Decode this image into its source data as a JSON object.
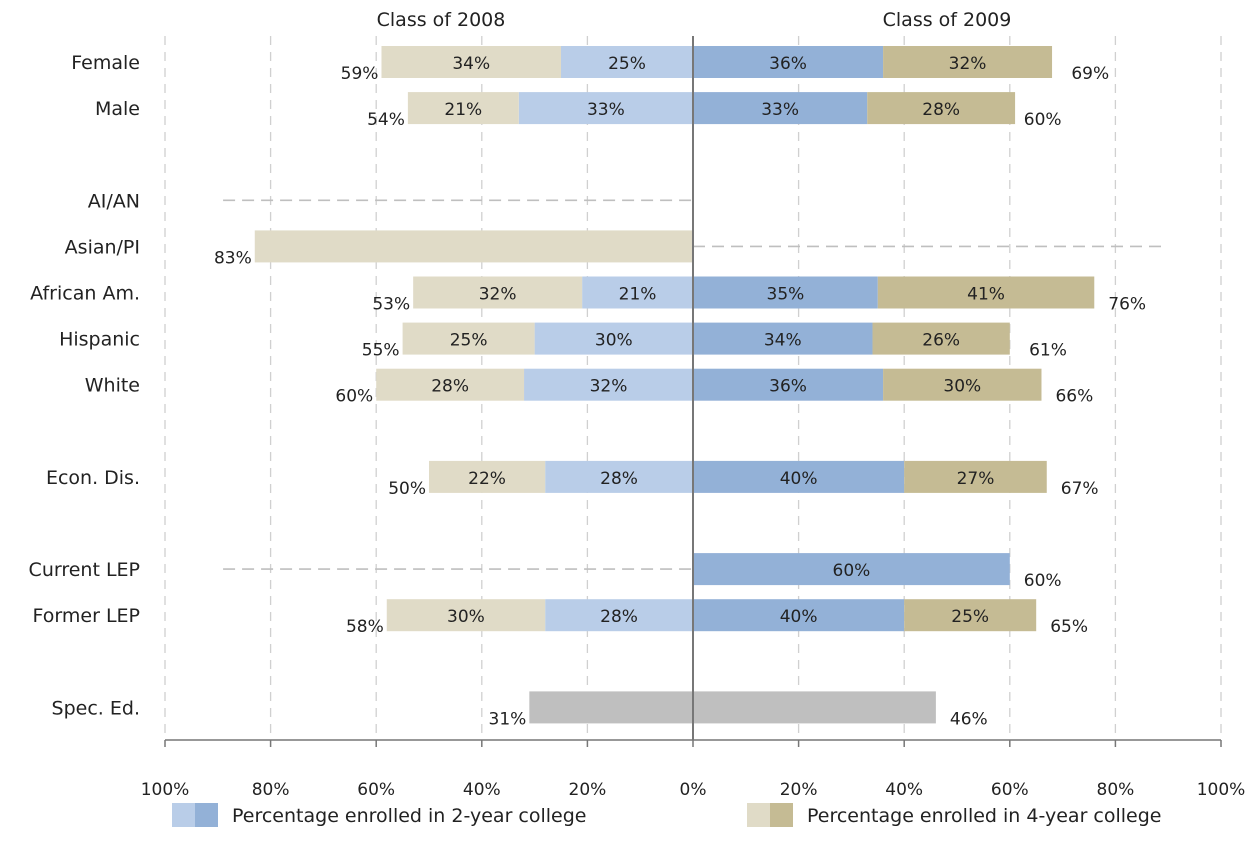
{
  "chart_data": {
    "type": "bar",
    "orientation": "horizontal-diverging",
    "panels": [
      "Class of 2008",
      "Class of 2009"
    ],
    "xlim": [
      -100,
      100
    ],
    "x_ticks": [
      "100%",
      "80%",
      "60%",
      "40%",
      "20%",
      "0%",
      "20%",
      "40%",
      "60%",
      "80%",
      "100%"
    ],
    "grid": "vertical dashed",
    "legend_position": "bottom",
    "legend": [
      {
        "label": "Percentage enrolled in 2-year college",
        "colors": [
          "#b9cde8",
          "#93b1d7"
        ]
      },
      {
        "label": "Percentage enrolled in 4-year college",
        "colors": [
          "#e0dbc7",
          "#c5bb94"
        ]
      }
    ],
    "colors": {
      "two_year_2008": "#b9cde8",
      "two_year_2009": "#93b1d7",
      "four_year_2008": "#e0dbc7",
      "four_year_2009": "#c5bb94",
      "special": "#bfbfbf",
      "no_data_line": "#bfbfbf",
      "axis": "#777777",
      "grid": "#d0d0d0"
    },
    "groups": [
      {
        "category": "Female",
        "c2008": {
          "two_year": 25,
          "four_year": 34,
          "total": 59,
          "two_year_label": "25%",
          "four_year_label": "34%",
          "total_label": "59%"
        },
        "c2009": {
          "two_year": 36,
          "four_year": 32,
          "total": 69,
          "two_year_label": "36%",
          "four_year_label": "32%",
          "total_label": "69%"
        }
      },
      {
        "category": "Male",
        "c2008": {
          "two_year": 33,
          "four_year": 21,
          "total": 54,
          "two_year_label": "33%",
          "four_year_label": "21%",
          "total_label": "54%"
        },
        "c2009": {
          "two_year": 33,
          "four_year": 28,
          "total": 60,
          "two_year_label": "33%",
          "four_year_label": "28%",
          "total_label": "60%"
        }
      },
      {
        "category": "",
        "gap": true
      },
      {
        "category": "AI/AN",
        "c2008": {
          "no_data": true
        },
        "c2009": {}
      },
      {
        "category": "Asian/PI",
        "c2008": {
          "two_year": 0,
          "four_year": 83,
          "total": 83,
          "total_label": "83%"
        },
        "c2009": {
          "no_data": true
        }
      },
      {
        "category": "African Am.",
        "c2008": {
          "two_year": 21,
          "four_year": 32,
          "total": 53,
          "two_year_label": "21%",
          "four_year_label": "32%",
          "total_label": "53%"
        },
        "c2009": {
          "two_year": 35,
          "four_year": 41,
          "total": 76,
          "two_year_label": "35%",
          "four_year_label": "41%",
          "total_label": "76%"
        }
      },
      {
        "category": "Hispanic",
        "c2008": {
          "two_year": 30,
          "four_year": 25,
          "total": 55,
          "two_year_label": "30%",
          "four_year_label": "25%",
          "total_label": "55%"
        },
        "c2009": {
          "two_year": 34,
          "four_year": 26,
          "total": 61,
          "two_year_label": "34%",
          "four_year_label": "26%",
          "total_label": "61%"
        }
      },
      {
        "category": "White",
        "c2008": {
          "two_year": 32,
          "four_year": 28,
          "total": 60,
          "two_year_label": "32%",
          "four_year_label": "28%",
          "total_label": "60%"
        },
        "c2009": {
          "two_year": 36,
          "four_year": 30,
          "total": 66,
          "two_year_label": "36%",
          "four_year_label": "30%",
          "total_label": "66%"
        }
      },
      {
        "category": "",
        "gap": true
      },
      {
        "category": "Econ. Dis.",
        "c2008": {
          "two_year": 28,
          "four_year": 22,
          "total": 50,
          "two_year_label": "28%",
          "four_year_label": "22%",
          "total_label": "50%"
        },
        "c2009": {
          "two_year": 40,
          "four_year": 27,
          "total": 67,
          "two_year_label": "40%",
          "four_year_label": "27%",
          "total_label": "67%"
        }
      },
      {
        "category": "",
        "gap": true
      },
      {
        "category": "Current LEP",
        "c2008": {
          "no_data": true
        },
        "c2009": {
          "two_year": 60,
          "four_year": 0,
          "total": 60,
          "two_year_label": "60%",
          "total_label": "60%"
        }
      },
      {
        "category": "Former LEP",
        "c2008": {
          "two_year": 28,
          "four_year": 30,
          "total": 58,
          "two_year_label": "28%",
          "four_year_label": "30%",
          "total_label": "58%"
        },
        "c2009": {
          "two_year": 40,
          "four_year": 25,
          "total": 65,
          "two_year_label": "40%",
          "four_year_label": "25%",
          "total_label": "65%"
        }
      },
      {
        "category": "",
        "gap": true
      },
      {
        "category": "Spec. Ed.",
        "c2008": {
          "special": 31,
          "total": 31,
          "total_label": "31%"
        },
        "c2009": {
          "special": 46,
          "total": 46,
          "total_label": "46%"
        }
      }
    ]
  }
}
